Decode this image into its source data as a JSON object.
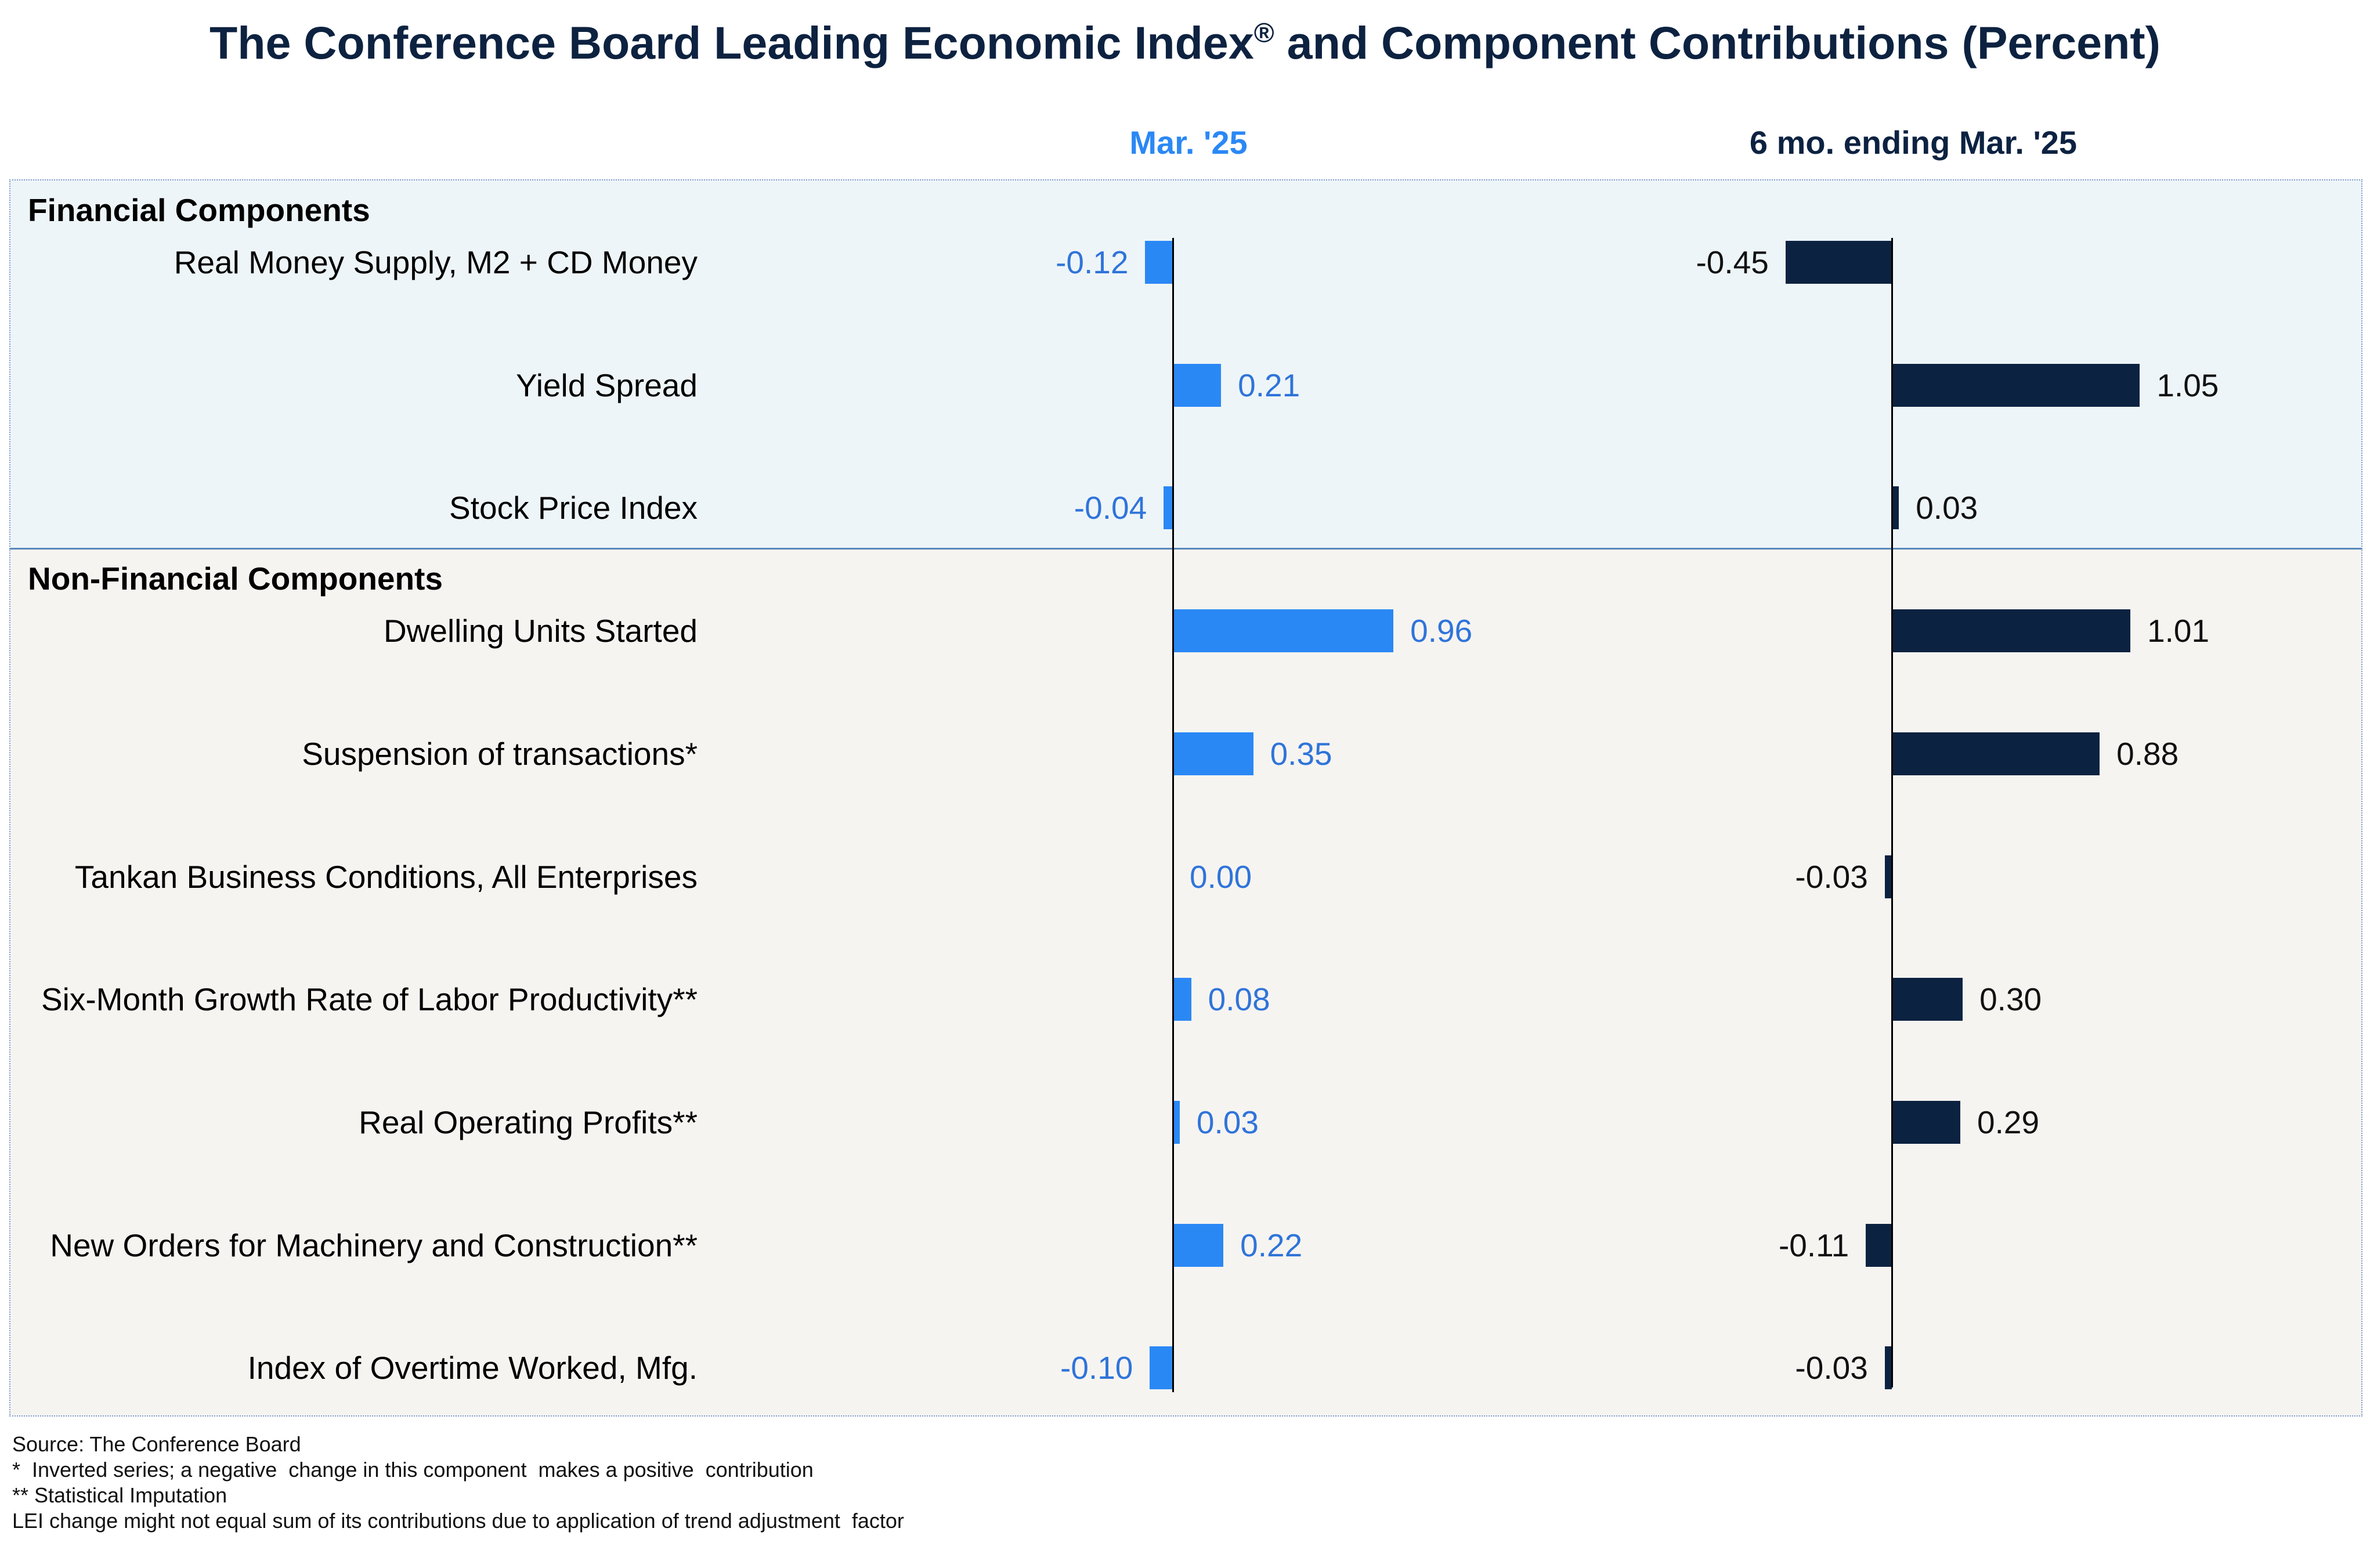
{
  "colors": {
    "title": "#0d2240",
    "panel_border": "#7f9bcf",
    "divider": "#5a88bb"
  },
  "chart_data": {
    "type": "bar",
    "orientation": "horizontal",
    "title": "The Conference Board Leading Economic Index® and Component Contributions (Percent)",
    "groups": [
      {
        "label": "Financial Components",
        "background": "#eef5f8",
        "categories": [
          "Real Money Supply, M2 + CD Money",
          "Yield Spread",
          "Stock Price Index"
        ]
      },
      {
        "label": "Non-Financial Components",
        "background": "#f6f4f1",
        "categories": [
          "Dwelling Units Started",
          "Suspension of transactions*",
          "Tankan Business Conditions, All Enterprises",
          "Six-Month Growth Rate of Labor Productivity**",
          "Real Operating Profits**",
          "New Orders for Machinery and Construction**",
          "Index of Overtime Worked, Mfg."
        ]
      }
    ],
    "series": [
      {
        "name": "Mar. '25",
        "color": "#2a88f5",
        "label_color": "#2f74da",
        "values": [
          -0.12,
          0.21,
          -0.04,
          0.96,
          0.35,
          0.0,
          0.08,
          0.03,
          0.22,
          -0.1
        ]
      },
      {
        "name": "6 mo. ending Mar. '25",
        "color": "#0c2241",
        "label_color": "#111111",
        "values": [
          -0.45,
          1.05,
          0.03,
          1.01,
          0.88,
          -0.03,
          0.3,
          0.29,
          -0.11,
          -0.03
        ]
      }
    ],
    "value_format": "0.00",
    "grid": false,
    "legend": "none"
  },
  "footer": {
    "lines": [
      "Source: The Conference Board",
      "*  Inverted series; a negative  change in this component  makes a positive  contribution",
      "** Statistical Imputation",
      "LEI change might not equal sum of its contributions due to application of trend adjustment  factor"
    ]
  }
}
